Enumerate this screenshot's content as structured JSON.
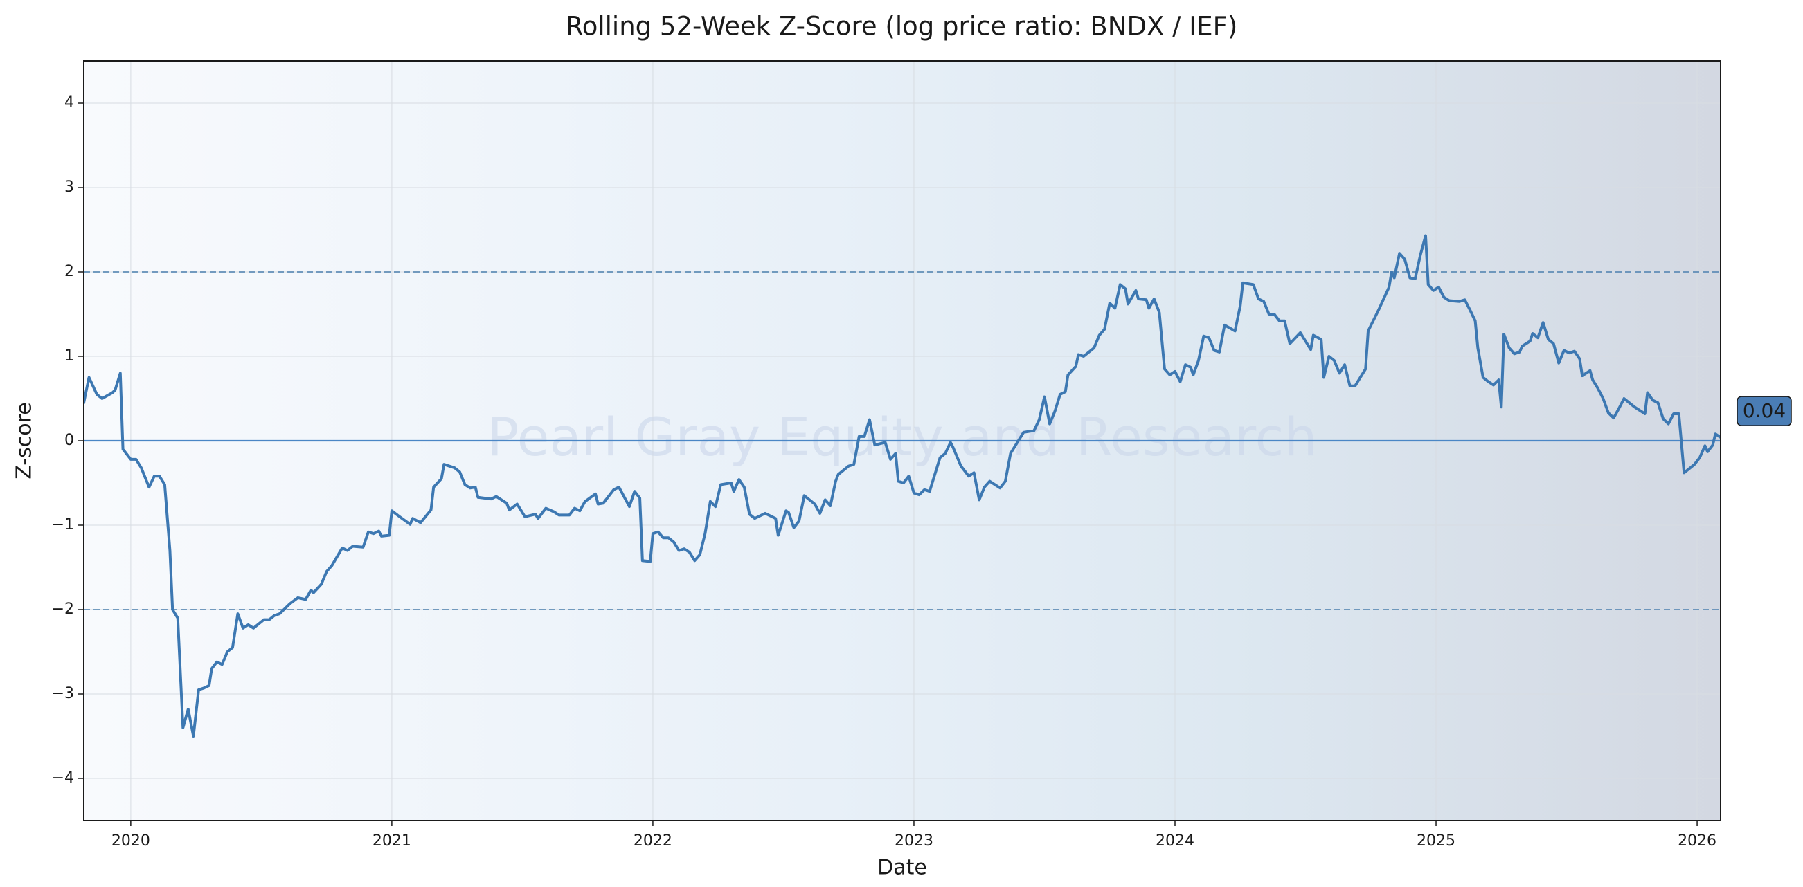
{
  "chart_data": {
    "type": "line",
    "title": "Rolling 52-Week Z-Score (log price ratio: BNDX / IEF)",
    "x_label": "Date",
    "y_label": "Z-score",
    "watermark": "Pearl Gray Equity and Research",
    "last_value_label": "0.04",
    "color": "#3d78b2",
    "grid": true,
    "dashed_lines": [
      2,
      -2
    ],
    "baseline": 0,
    "xlim": [
      2019.82,
      2026.09
    ],
    "ylim": [
      -4.5,
      4.5
    ],
    "xticks": [
      2020,
      2021,
      2022,
      2023,
      2024,
      2025,
      2026
    ],
    "yticks": [
      {
        "value": -4,
        "label": "−4"
      },
      {
        "value": -3,
        "label": "−3"
      },
      {
        "value": -2,
        "label": "−2"
      },
      {
        "value": -1,
        "label": "−1"
      },
      0,
      1,
      2,
      3,
      4
    ],
    "x": [
      2019.82,
      2019.84,
      2019.87,
      2019.89,
      2019.93,
      2019.94,
      2019.96,
      2019.97,
      2020.0,
      2020.02,
      2020.04,
      2020.07,
      2020.09,
      2020.11,
      2020.13,
      2020.15,
      2020.16,
      2020.18,
      2020.2,
      2020.22,
      2020.24,
      2020.26,
      2020.28,
      2020.3,
      2020.31,
      2020.33,
      2020.35,
      2020.37,
      2020.39,
      2020.41,
      2020.43,
      2020.45,
      2020.47,
      2020.51,
      2020.53,
      2020.55,
      2020.57,
      2020.61,
      2020.64,
      2020.67,
      2020.69,
      2020.7,
      2020.73,
      2020.75,
      2020.77,
      2020.81,
      2020.83,
      2020.85,
      2020.89,
      2020.91,
      2020.93,
      2020.95,
      2020.96,
      2020.99,
      2021.0,
      2021.03,
      2021.07,
      2021.08,
      2021.11,
      2021.15,
      2021.16,
      2021.19,
      2021.2,
      2021.24,
      2021.26,
      2021.28,
      2021.3,
      2021.32,
      2021.33,
      2021.38,
      2021.4,
      2021.44,
      2021.45,
      2021.48,
      2021.51,
      2021.55,
      2021.56,
      2021.59,
      2021.62,
      2021.64,
      2021.68,
      2021.7,
      2021.72,
      2021.74,
      2021.78,
      2021.79,
      2021.81,
      2021.85,
      2021.87,
      2021.91,
      2021.93,
      2021.95,
      2021.96,
      2021.99,
      2022.0,
      2022.02,
      2022.04,
      2022.06,
      2022.08,
      2022.1,
      2022.12,
      2022.14,
      2022.16,
      2022.18,
      2022.2,
      2022.22,
      2022.24,
      2022.26,
      2022.3,
      2022.31,
      2022.33,
      2022.35,
      2022.37,
      2022.39,
      2022.43,
      2022.47,
      2022.48,
      2022.51,
      2022.52,
      2022.54,
      2022.56,
      2022.58,
      2022.62,
      2022.64,
      2022.66,
      2022.68,
      2022.7,
      2022.71,
      2022.75,
      2022.77,
      2022.79,
      2022.81,
      2022.83,
      2022.85,
      2022.89,
      2022.91,
      2022.93,
      2022.94,
      2022.96,
      2022.98,
      2023.0,
      2023.02,
      2023.04,
      2023.06,
      2023.1,
      2023.12,
      2023.14,
      2023.15,
      2023.18,
      2023.21,
      2023.23,
      2023.25,
      2023.27,
      2023.29,
      2023.33,
      2023.35,
      2023.37,
      2023.41,
      2023.42,
      2023.46,
      2023.48,
      2023.5,
      2023.52,
      2023.54,
      2023.56,
      2023.58,
      2023.59,
      2023.62,
      2023.63,
      2023.65,
      2023.69,
      2023.71,
      2023.73,
      2023.75,
      2023.77,
      2023.79,
      2023.81,
      2023.82,
      2023.85,
      2023.86,
      2023.89,
      2023.9,
      2023.92,
      2023.94,
      2023.96,
      2023.98,
      2024.0,
      2024.02,
      2024.04,
      2024.06,
      2024.07,
      2024.09,
      2024.11,
      2024.13,
      2024.15,
      2024.17,
      2024.19,
      2024.23,
      2024.25,
      2024.26,
      2024.3,
      2024.32,
      2024.34,
      2024.36,
      2024.38,
      2024.4,
      2024.42,
      2024.44,
      2024.48,
      2024.52,
      2024.53,
      2024.56,
      2024.57,
      2024.59,
      2024.61,
      2024.63,
      2024.65,
      2024.67,
      2024.69,
      2024.73,
      2024.74,
      2024.78,
      2024.82,
      2024.83,
      2024.84,
      2024.86,
      2024.88,
      2024.9,
      2024.92,
      2024.94,
      2024.96,
      2024.97,
      2024.99,
      2025.01,
      2025.03,
      2025.05,
      2025.09,
      2025.11,
      2025.13,
      2025.15,
      2025.16,
      2025.18,
      2025.2,
      2025.22,
      2025.24,
      2025.25,
      2025.26,
      2025.28,
      2025.3,
      2025.32,
      2025.33,
      2025.36,
      2025.37,
      2025.39,
      2025.41,
      2025.43,
      2025.45,
      2025.47,
      2025.49,
      2025.51,
      2025.53,
      2025.55,
      2025.56,
      2025.59,
      2025.6,
      2025.62,
      2025.64,
      2025.66,
      2025.68,
      2025.7,
      2025.72,
      2025.74,
      2025.76,
      2025.8,
      2025.81,
      2025.83,
      2025.85,
      2025.87,
      2025.89,
      2025.91,
      2025.93,
      2025.95,
      2025.97,
      2025.99,
      2026.01,
      2026.03,
      2026.04,
      2026.06,
      2026.07,
      2026.09
    ],
    "values": [
      0.45,
      0.75,
      0.55,
      0.5,
      0.57,
      0.6,
      0.8,
      -0.1,
      -0.22,
      -0.22,
      -0.32,
      -0.55,
      -0.42,
      -0.42,
      -0.52,
      -1.3,
      -2.0,
      -2.1,
      -3.4,
      -3.18,
      -3.5,
      -2.95,
      -2.93,
      -2.9,
      -2.7,
      -2.62,
      -2.65,
      -2.5,
      -2.45,
      -2.05,
      -2.22,
      -2.18,
      -2.22,
      -2.12,
      -2.12,
      -2.07,
      -2.05,
      -1.93,
      -1.86,
      -1.88,
      -1.77,
      -1.8,
      -1.7,
      -1.55,
      -1.48,
      -1.27,
      -1.3,
      -1.25,
      -1.26,
      -1.08,
      -1.1,
      -1.07,
      -1.13,
      -1.12,
      -0.83,
      -0.9,
      -0.99,
      -0.92,
      -0.97,
      -0.82,
      -0.55,
      -0.45,
      -0.28,
      -0.32,
      -0.37,
      -0.52,
      -0.56,
      -0.55,
      -0.67,
      -0.69,
      -0.66,
      -0.74,
      -0.82,
      -0.75,
      -0.9,
      -0.87,
      -0.92,
      -0.8,
      -0.84,
      -0.88,
      -0.88,
      -0.8,
      -0.83,
      -0.72,
      -0.63,
      -0.75,
      -0.74,
      -0.58,
      -0.55,
      -0.78,
      -0.6,
      -0.68,
      -1.42,
      -1.43,
      -1.1,
      -1.08,
      -1.15,
      -1.15,
      -1.2,
      -1.3,
      -1.28,
      -1.32,
      -1.42,
      -1.35,
      -1.1,
      -0.72,
      -0.78,
      -0.52,
      -0.5,
      -0.6,
      -0.46,
      -0.55,
      -0.87,
      -0.92,
      -0.86,
      -0.92,
      -1.12,
      -0.83,
      -0.85,
      -1.03,
      -0.95,
      -0.65,
      -0.75,
      -0.86,
      -0.7,
      -0.77,
      -0.48,
      -0.4,
      -0.3,
      -0.28,
      0.05,
      0.05,
      0.25,
      -0.05,
      -0.02,
      -0.22,
      -0.15,
      -0.48,
      -0.5,
      -0.42,
      -0.62,
      -0.64,
      -0.58,
      -0.6,
      -0.2,
      -0.15,
      -0.02,
      -0.08,
      -0.3,
      -0.42,
      -0.38,
      -0.7,
      -0.55,
      -0.48,
      -0.56,
      -0.48,
      -0.15,
      0.05,
      0.1,
      0.12,
      0.25,
      0.52,
      0.2,
      0.35,
      0.55,
      0.58,
      0.78,
      0.88,
      1.02,
      1.0,
      1.1,
      1.25,
      1.32,
      1.63,
      1.57,
      1.85,
      1.8,
      1.62,
      1.78,
      1.68,
      1.67,
      1.57,
      1.68,
      1.52,
      0.85,
      0.78,
      0.82,
      0.7,
      0.9,
      0.87,
      0.78,
      0.95,
      1.24,
      1.22,
      1.07,
      1.05,
      1.37,
      1.3,
      1.6,
      1.87,
      1.85,
      1.68,
      1.65,
      1.5,
      1.5,
      1.42,
      1.42,
      1.15,
      1.28,
      1.08,
      1.25,
      1.2,
      0.75,
      1.0,
      0.95,
      0.8,
      0.9,
      0.65,
      0.65,
      0.85,
      1.3,
      1.55,
      1.82,
      2.0,
      1.93,
      2.22,
      2.15,
      1.93,
      1.92,
      2.2,
      2.43,
      1.85,
      1.78,
      1.82,
      1.7,
      1.66,
      1.65,
      1.67,
      1.55,
      1.42,
      1.1,
      0.75,
      0.7,
      0.66,
      0.72,
      0.4,
      1.26,
      1.1,
      1.03,
      1.05,
      1.12,
      1.18,
      1.27,
      1.22,
      1.4,
      1.2,
      1.15,
      0.92,
      1.07,
      1.04,
      1.06,
      0.97,
      0.77,
      0.83,
      0.72,
      0.62,
      0.5,
      0.33,
      0.27,
      0.38,
      0.5,
      0.45,
      0.4,
      0.32,
      0.57,
      0.48,
      0.45,
      0.26,
      0.2,
      0.32,
      0.32,
      -0.38,
      -0.33,
      -0.28,
      -0.2,
      -0.06,
      -0.13,
      -0.05,
      0.08,
      0.04
    ]
  }
}
